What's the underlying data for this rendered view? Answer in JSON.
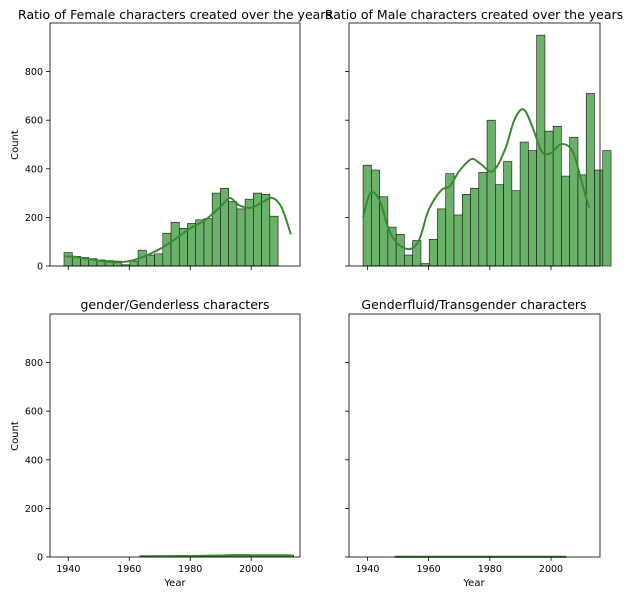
{
  "chart_data": [
    {
      "type": "bar",
      "title": "Ratio of Female characters created over the years",
      "xlabel": "",
      "ylabel": "Count",
      "xlim": [
        1934,
        2016
      ],
      "ylim": [
        0,
        1000
      ],
      "xticks": [],
      "yticks": [
        "0",
        "200",
        "400",
        "600",
        "800"
      ],
      "grid": false,
      "bin_width": 2.7,
      "bin_start": 1938.6,
      "values": [
        55,
        40,
        35,
        30,
        25,
        22,
        20,
        5,
        20,
        65,
        45,
        50,
        135,
        180,
        155,
        175,
        190,
        195,
        300,
        320,
        265,
        235,
        275,
        300,
        295,
        205
      ],
      "kde": [
        [
          1939,
          40
        ],
        [
          1942,
          38
        ],
        [
          1946,
          30
        ],
        [
          1950,
          22
        ],
        [
          1955,
          15
        ],
        [
          1960,
          20
        ],
        [
          1965,
          40
        ],
        [
          1970,
          70
        ],
        [
          1975,
          110
        ],
        [
          1980,
          155
        ],
        [
          1985,
          190
        ],
        [
          1990,
          245
        ],
        [
          1993,
          280
        ],
        [
          1996,
          250
        ],
        [
          2000,
          240
        ],
        [
          2004,
          265
        ],
        [
          2007,
          280
        ],
        [
          2010,
          240
        ],
        [
          2013,
          130
        ]
      ]
    },
    {
      "type": "bar",
      "title": "Ratio of Male characters created over the years",
      "xlabel": "",
      "ylabel": "",
      "xlim": [
        1934,
        2016
      ],
      "ylim": [
        0,
        1000
      ],
      "xticks": [],
      "yticks": [],
      "grid": false,
      "bin_width": 2.7,
      "bin_start": 1938.6,
      "values": [
        415,
        395,
        285,
        160,
        130,
        45,
        105,
        10,
        110,
        235,
        380,
        210,
        295,
        320,
        385,
        600,
        335,
        430,
        310,
        510,
        475,
        950,
        555,
        575,
        370,
        530,
        375,
        710,
        395,
        475
      ],
      "kde": [
        [
          1938.6,
          200
        ],
        [
          1941,
          300
        ],
        [
          1944,
          270
        ],
        [
          1947,
          150
        ],
        [
          1950,
          90
        ],
        [
          1954,
          70
        ],
        [
          1957,
          110
        ],
        [
          1960,
          230
        ],
        [
          1964,
          310
        ],
        [
          1967,
          330
        ],
        [
          1970,
          390
        ],
        [
          1974,
          440
        ],
        [
          1977,
          420
        ],
        [
          1981,
          390
        ],
        [
          1985,
          480
        ],
        [
          1988,
          600
        ],
        [
          1991,
          645
        ],
        [
          1994,
          570
        ],
        [
          1997,
          470
        ],
        [
          2000,
          465
        ],
        [
          2003,
          500
        ],
        [
          2006,
          490
        ],
        [
          2008,
          440
        ],
        [
          2011,
          300
        ],
        [
          2012.5,
          240
        ]
      ]
    },
    {
      "type": "bar",
      "title": "gender/Genderless characters",
      "xlabel": "Year",
      "ylabel": "Count",
      "xlim": [
        1934,
        2016
      ],
      "ylim": [
        0,
        1000
      ],
      "xticks": [
        "1940",
        "1960",
        "1980",
        "2000"
      ],
      "yticks": [
        "0",
        "200",
        "400",
        "600",
        "800"
      ],
      "grid": false,
      "bin_width": 7.2,
      "bin_start": 1963.5,
      "values": [
        5,
        3,
        3,
        5,
        10,
        6,
        8
      ],
      "kde": [
        [
          1963.5,
          3
        ],
        [
          1980,
          4
        ],
        [
          1995,
          7
        ],
        [
          2013,
          7
        ]
      ]
    },
    {
      "type": "bar",
      "title": "Genderfluid/Transgender characters",
      "xlabel": "Year",
      "ylabel": "",
      "xlim": [
        1934,
        2016
      ],
      "ylim": [
        0,
        1000
      ],
      "xticks": [
        "1940",
        "1960",
        "1980",
        "2000"
      ],
      "yticks": [],
      "grid": false,
      "bin_width": 8.0,
      "bin_start": 1949,
      "values": [
        1,
        1,
        1,
        1,
        1,
        1,
        1
      ],
      "kde": [
        [
          1949,
          1
        ],
        [
          2005,
          1
        ]
      ]
    }
  ]
}
